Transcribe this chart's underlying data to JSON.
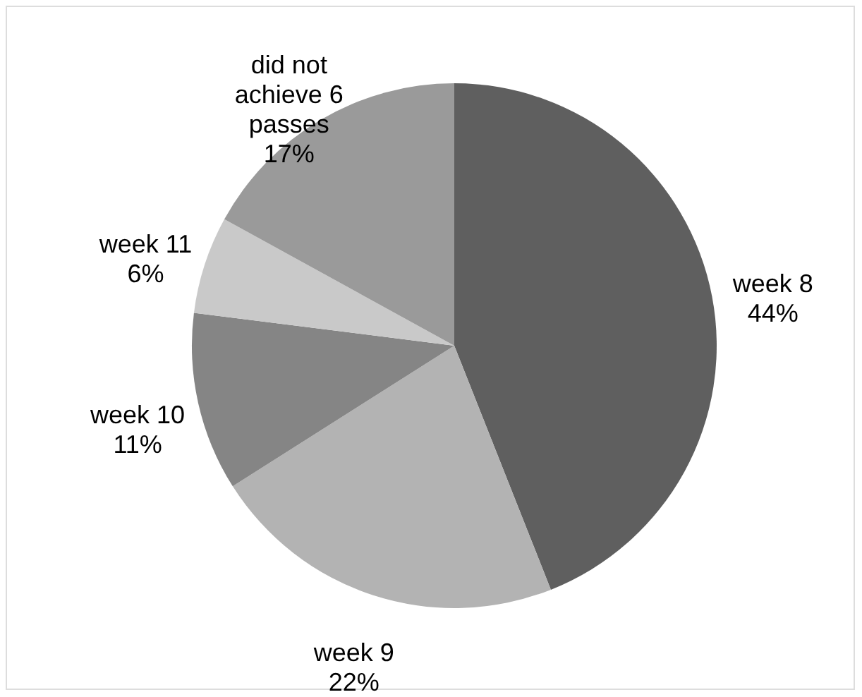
{
  "chart_data": {
    "type": "pie",
    "categories": [
      "week 8",
      "week 9",
      "week 10",
      "week 11",
      "did not achieve 6 passes"
    ],
    "values": [
      44,
      22,
      11,
      6,
      17
    ],
    "value_labels": [
      "44%",
      "22%",
      "11%",
      "6%",
      "17%"
    ],
    "colors": [
      "#5f5f5f",
      "#b3b3b3",
      "#858585",
      "#c9c9c9",
      "#9a9a9a"
    ],
    "legend": false
  }
}
